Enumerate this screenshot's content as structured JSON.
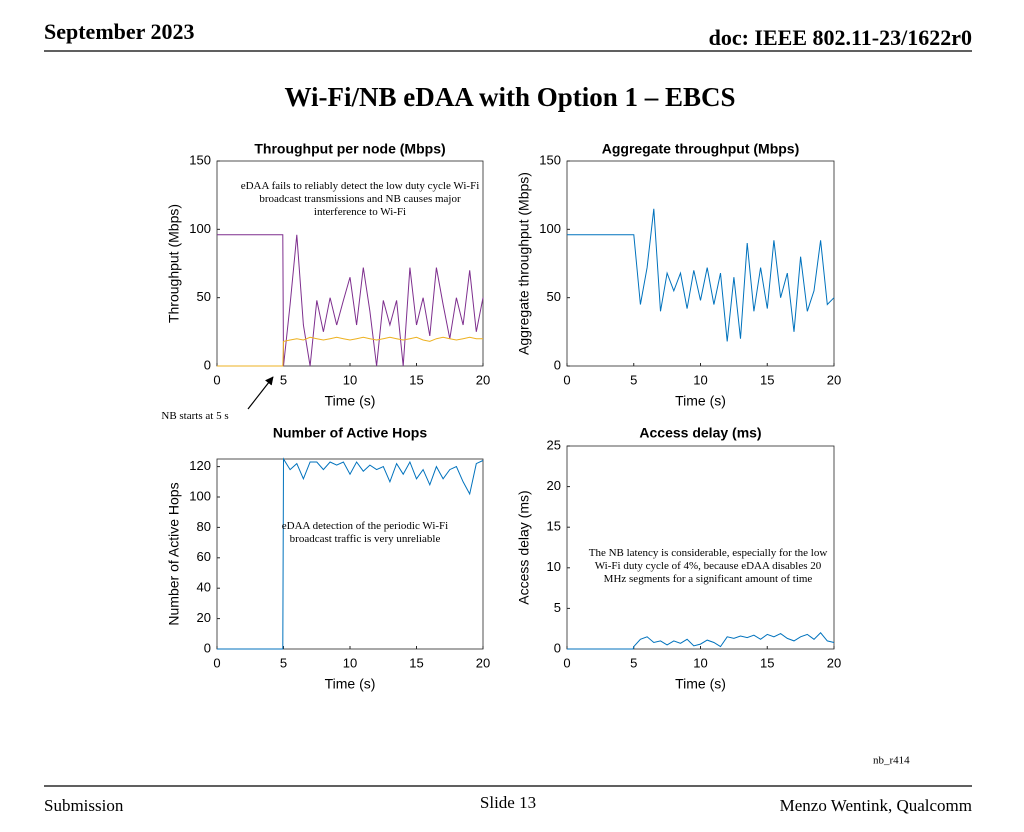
{
  "header": {
    "date": "September 2023",
    "doc": "doc: IEEE 802.11-23/1622r0"
  },
  "title": "Wi-Fi/NB eDAA with Option 1 – EBCS",
  "note": "nb_r414",
  "footer": {
    "left": "Submission",
    "center": "Slide 13",
    "right": "Menzo Wentink, Qualcomm"
  },
  "chart_data": [
    {
      "type": "line",
      "title": "Throughput per node (Mbps)",
      "xlabel": "Time (s)",
      "ylabel": "Throughput (Mbps)",
      "xlim": [
        0,
        20
      ],
      "xticks": [
        0,
        5,
        10,
        15,
        20
      ],
      "ylim": [
        0,
        150
      ],
      "yticks": [
        0,
        50,
        100,
        150
      ],
      "annotations": [
        "eDAA fails to reliably detect the low duty cycle Wi-Fi broadcast transmissions and NB causes major interference to Wi-Fi",
        "NB starts at 5 s"
      ],
      "x": [
        0,
        4.95,
        5,
        5.5,
        6,
        6.5,
        7,
        7.5,
        8,
        8.5,
        9,
        9.5,
        10,
        10.5,
        11,
        11.5,
        12,
        12.5,
        13,
        13.5,
        14,
        14.5,
        15,
        15.5,
        16,
        16.5,
        17,
        17.5,
        18,
        18.5,
        19,
        19.5,
        20
      ],
      "series": [
        {
          "color": "#7e2f8e",
          "values": [
            96,
            96,
            0,
            45,
            96,
            30,
            0,
            48,
            25,
            50,
            30,
            48,
            65,
            30,
            72,
            40,
            0,
            48,
            30,
            48,
            0,
            72,
            30,
            50,
            22,
            72,
            45,
            20,
            50,
            30,
            70,
            25,
            50
          ]
        },
        {
          "color": "#edb120",
          "values": [
            0,
            0,
            18,
            19,
            20,
            19,
            21,
            20,
            19,
            20,
            21,
            20,
            19,
            20,
            21,
            20,
            19,
            20,
            21,
            20,
            19,
            20,
            21,
            19,
            18,
            20,
            21,
            20,
            19,
            20,
            21,
            20,
            20
          ]
        }
      ]
    },
    {
      "type": "line",
      "title": "Aggregate throughput (Mbps)",
      "xlabel": "Time (s)",
      "ylabel": "Aggregate throughput (Mbps)",
      "xlim": [
        0,
        20
      ],
      "xticks": [
        0,
        5,
        10,
        15,
        20
      ],
      "ylim": [
        0,
        150
      ],
      "yticks": [
        0,
        50,
        100,
        150
      ],
      "annotations": [],
      "x": [
        0,
        4.95,
        5,
        5.5,
        6,
        6.5,
        7,
        7.5,
        8,
        8.5,
        9,
        9.5,
        10,
        10.5,
        11,
        11.5,
        12,
        12.5,
        13,
        13.5,
        14,
        14.5,
        15,
        15.5,
        16,
        16.5,
        17,
        17.5,
        18,
        18.5,
        19,
        19.5,
        20
      ],
      "series": [
        {
          "color": "#0072bd",
          "values": [
            96,
            96,
            96,
            45,
            72,
            115,
            40,
            68,
            55,
            68,
            42,
            70,
            48,
            72,
            45,
            68,
            18,
            65,
            20,
            90,
            40,
            72,
            42,
            92,
            50,
            68,
            25,
            80,
            40,
            55,
            92,
            45,
            50
          ]
        }
      ]
    },
    {
      "type": "line",
      "title": "Number of Active Hops",
      "xlabel": "Time (s)",
      "ylabel": "Number of Active Hops",
      "xlim": [
        0,
        20
      ],
      "xticks": [
        0,
        5,
        10,
        15,
        20
      ],
      "ylim": [
        0,
        125
      ],
      "yticks": [
        0,
        20,
        40,
        60,
        80,
        100,
        120
      ],
      "annotations": [
        "eDAA detection of the periodic Wi-Fi broadcast traffic is very unreliable"
      ],
      "x": [
        0,
        4.95,
        5,
        5.5,
        6,
        6.5,
        7,
        7.5,
        8,
        8.5,
        9,
        9.5,
        10,
        10.5,
        11,
        11.5,
        12,
        12.5,
        13,
        13.5,
        14,
        14.5,
        15,
        15.5,
        16,
        16.5,
        17,
        17.5,
        18,
        18.5,
        19,
        19.5,
        20
      ],
      "series": [
        {
          "color": "#0072bd",
          "values": [
            0,
            0,
            125,
            118,
            122,
            112,
            123,
            123,
            118,
            123,
            121,
            123,
            115,
            123,
            117,
            121,
            118,
            120,
            110,
            122,
            115,
            123,
            112,
            118,
            108,
            120,
            112,
            118,
            120,
            110,
            102,
            122,
            124
          ]
        }
      ]
    },
    {
      "type": "line",
      "title": "Access delay (ms)",
      "xlabel": "Time (s)",
      "ylabel": "Access delay (ms)",
      "xlim": [
        0,
        20
      ],
      "xticks": [
        0,
        5,
        10,
        15,
        20
      ],
      "ylim": [
        0,
        25
      ],
      "yticks": [
        0,
        5,
        10,
        15,
        20,
        25
      ],
      "annotations": [
        "The NB latency is considerable, especially for the low Wi-Fi duty cycle of 4%, because eDAA disables 20 MHz segments for a significant amount of time"
      ],
      "x": [
        0,
        4.95,
        5,
        5.5,
        6,
        6.5,
        7,
        7.5,
        8,
        8.5,
        9,
        9.5,
        10,
        10.5,
        11,
        11.5,
        12,
        12.5,
        13,
        13.5,
        14,
        14.5,
        15,
        15.5,
        16,
        16.5,
        17,
        17.5,
        18,
        18.5,
        19,
        19.5,
        20
      ],
      "series": [
        {
          "color": "#0072bd",
          "values": [
            0,
            0,
            0.3,
            1.2,
            1.5,
            0.8,
            1.0,
            0.5,
            1.0,
            0.7,
            1.2,
            0.4,
            0.6,
            1.1,
            0.8,
            0.3,
            1.5,
            1.3,
            1.6,
            1.4,
            1.7,
            1.2,
            1.8,
            1.5,
            1.9,
            1.3,
            1.0,
            1.5,
            1.8,
            1.2,
            2.0,
            1.0,
            0.8
          ]
        }
      ]
    }
  ]
}
